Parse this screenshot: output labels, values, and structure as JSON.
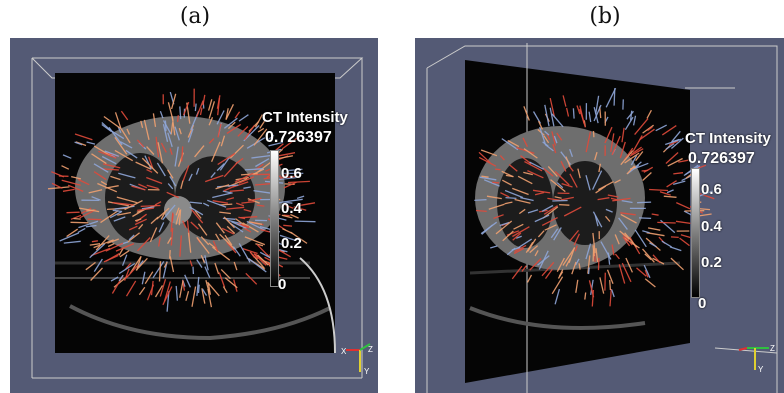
{
  "panels": [
    {
      "label": "(a)"
    },
    {
      "label": "(b)"
    }
  ],
  "colorbar": {
    "title": "CT Intensity",
    "max": "0.726397",
    "ticks": [
      "0.6",
      "0.4",
      "0.2",
      "0"
    ]
  },
  "axes": {
    "x": "X",
    "y": "Y",
    "z": "Z"
  },
  "colors": {
    "background": "#545a75",
    "arrow_high": "#e04a3a",
    "arrow_mid": "#f0a070",
    "arrow_low": "#8fa6d8"
  }
}
